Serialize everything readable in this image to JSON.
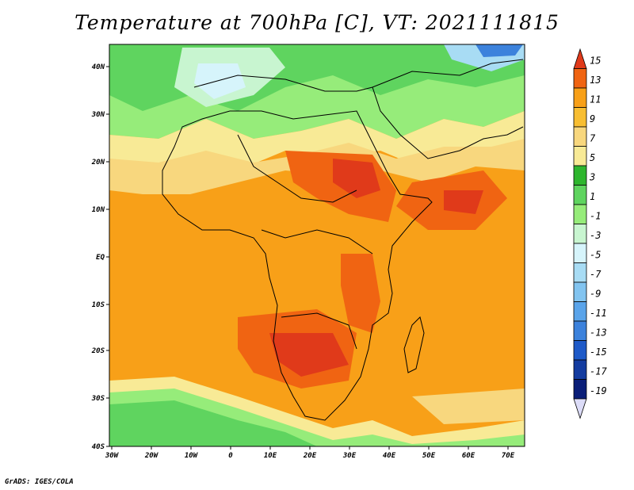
{
  "title": "Temperature at 700hPa [C], VT: 2021111815",
  "footer": "GrADS: IGES/COLA",
  "map": {
    "lon_ticks": [
      "30W",
      "20W",
      "10W",
      "0",
      "10E",
      "20E",
      "30E",
      "40E",
      "50E",
      "60E",
      "70E"
    ],
    "lat_ticks": [
      "40N",
      "30N",
      "20N",
      "10N",
      "EQ",
      "10S",
      "20S",
      "30S",
      "40S"
    ]
  },
  "colorbar": {
    "labels": [
      "15",
      "13",
      "11",
      "9",
      "7",
      "5",
      "3",
      "1",
      "-1",
      "-3",
      "-5",
      "-7",
      "-9",
      "-11",
      "-13",
      "-15",
      "-17",
      "-19"
    ],
    "colors": [
      "#e03a1a",
      "#f06412",
      "#f8a018",
      "#f8be32",
      "#f8d77e",
      "#f8ea96",
      "#2eb62e",
      "#5fd45f",
      "#96ec7a",
      "#c8f5d0",
      "#d6f4fb",
      "#a8dcf4",
      "#82c4f0",
      "#5aa4ea",
      "#3c82dc",
      "#1e5ac8",
      "#143ca0",
      "#0a1e78",
      "#dcdcf8"
    ]
  }
}
